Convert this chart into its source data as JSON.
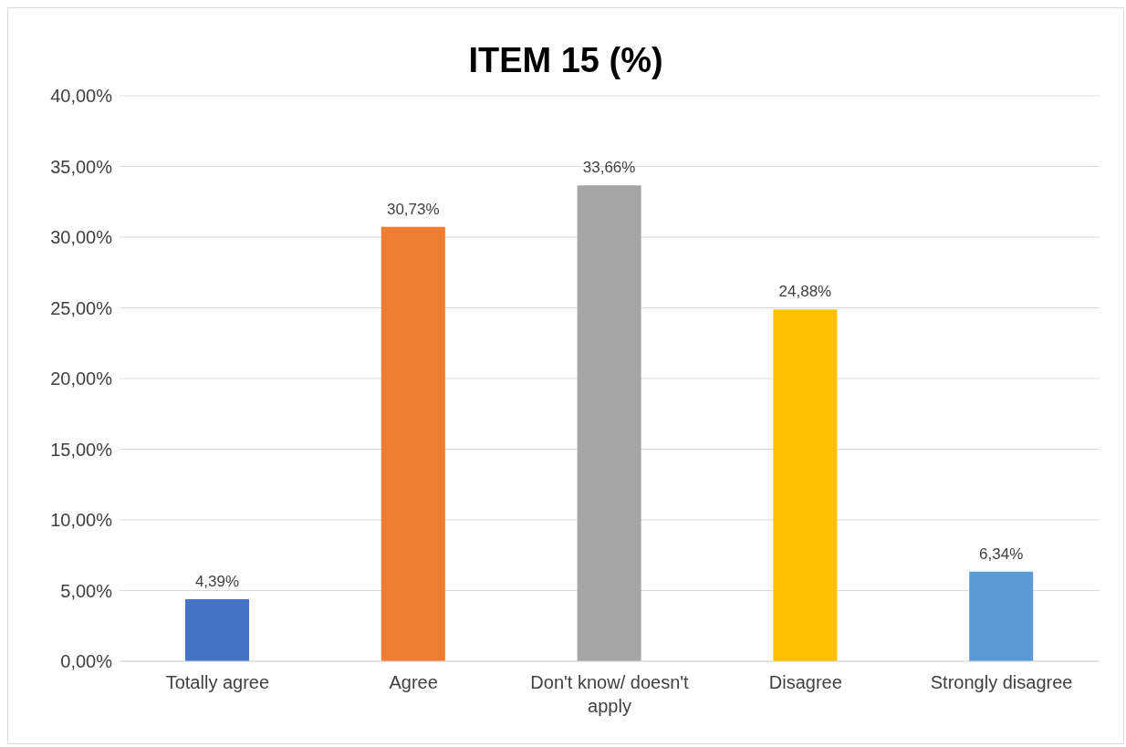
{
  "chart_data": {
    "type": "bar",
    "title": "ITEM 15 (%)",
    "categories": [
      "Totally agree",
      "Agree",
      "Don't know/ doesn't apply",
      "Disagree",
      "Strongly disagree"
    ],
    "values": [
      4.39,
      30.73,
      33.66,
      24.88,
      6.34
    ],
    "colors": [
      "#4472c4",
      "#ed7d31",
      "#a5a5a5",
      "#ffc000",
      "#5b9bd5"
    ],
    "value_labels": [
      "4,39%",
      "30,73%",
      "33,66%",
      "24,88%",
      "6,34%"
    ],
    "ylim": [
      0,
      40
    ],
    "yticks": [
      {
        "value": 0,
        "label": "0,00%"
      },
      {
        "value": 5,
        "label": "5,00%"
      },
      {
        "value": 10,
        "label": "10,00%"
      },
      {
        "value": 15,
        "label": "15,00%"
      },
      {
        "value": 20,
        "label": "20,00%"
      },
      {
        "value": 25,
        "label": "25,00%"
      },
      {
        "value": 30,
        "label": "30,00%"
      },
      {
        "value": 35,
        "label": "35,00%"
      },
      {
        "value": 40,
        "label": "40,00%"
      }
    ],
    "grid": "y"
  }
}
